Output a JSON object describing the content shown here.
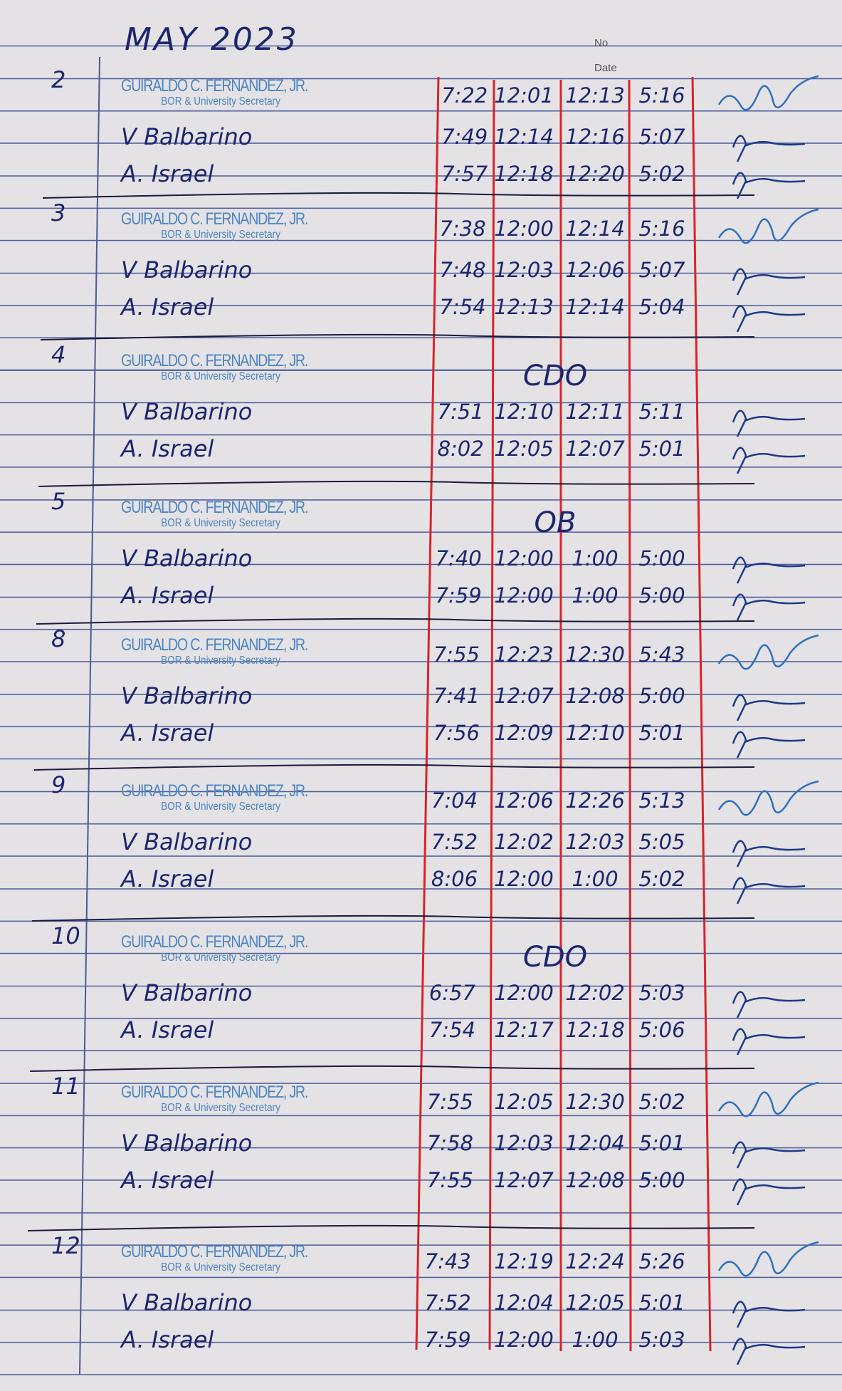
{
  "header": {
    "title": "MAY 2023",
    "no_label": "No",
    "date_label": "Date"
  },
  "stamp": {
    "name": "GUIRALDO C. FERNANDEZ, JR.",
    "position": "BOR & University Secretary"
  },
  "colors": {
    "ink": "#1c2670",
    "stamp": "#4d86c4",
    "column_rule": "#d8242a",
    "signature": "#2f6fc0"
  },
  "days": [
    {
      "day": "2",
      "note": "",
      "rows": [
        {
          "name": "",
          "times": [
            "7:22",
            "12:01",
            "12:13",
            "5:16"
          ]
        },
        {
          "name": "V Balbarino",
          "times": [
            "7:49",
            "12:14",
            "12:16",
            "5:07"
          ]
        },
        {
          "name": "A. Israel",
          "times": [
            "7:57",
            "12:18",
            "12:20",
            "5:02"
          ]
        }
      ]
    },
    {
      "day": "3",
      "note": "",
      "rows": [
        {
          "name": "",
          "times": [
            "7:38",
            "12:00",
            "12:14",
            "5:16"
          ]
        },
        {
          "name": "V Balbarino",
          "times": [
            "7:48",
            "12:03",
            "12:06",
            "5:07"
          ]
        },
        {
          "name": "A. Israel",
          "times": [
            "7:54",
            "12:13",
            "12:14",
            "5:04"
          ]
        }
      ]
    },
    {
      "day": "4",
      "note": "CDO",
      "rows": [
        {
          "name": "",
          "times": []
        },
        {
          "name": "V Balbarino",
          "times": [
            "7:51",
            "12:10",
            "12:11",
            "5:11"
          ]
        },
        {
          "name": "A. Israel",
          "times": [
            "8:02",
            "12:05",
            "12:07",
            "5:01"
          ]
        }
      ]
    },
    {
      "day": "5",
      "note": "OB",
      "rows": [
        {
          "name": "",
          "times": []
        },
        {
          "name": "V Balbarino",
          "times": [
            "7:40",
            "12:00",
            "1:00",
            "5:00"
          ]
        },
        {
          "name": "A. Israel",
          "times": [
            "7:59",
            "12:00",
            "1:00",
            "5:00"
          ]
        }
      ]
    },
    {
      "day": "8",
      "note": "",
      "rows": [
        {
          "name": "",
          "times": [
            "7:55",
            "12:23",
            "12:30",
            "5:43"
          ]
        },
        {
          "name": "V Balbarino",
          "times": [
            "7:41",
            "12:07",
            "12:08",
            "5:00"
          ]
        },
        {
          "name": "A. Israel",
          "times": [
            "7:56",
            "12:09",
            "12:10",
            "5:01"
          ]
        }
      ]
    },
    {
      "day": "9",
      "note": "",
      "rows": [
        {
          "name": "",
          "times": [
            "7:04",
            "12:06",
            "12:26",
            "5:13"
          ]
        },
        {
          "name": "V Balbarino",
          "times": [
            "7:52",
            "12:02",
            "12:03",
            "5:05"
          ]
        },
        {
          "name": "A. Israel",
          "times": [
            "8:06",
            "12:00",
            "1:00",
            "5:02"
          ]
        }
      ]
    },
    {
      "day": "10",
      "note": "CDO",
      "rows": [
        {
          "name": "",
          "times": []
        },
        {
          "name": "V Balbarino",
          "times": [
            "6:57",
            "12:00",
            "12:02",
            "5:03"
          ]
        },
        {
          "name": "A. Israel",
          "times": [
            "7:54",
            "12:17",
            "12:18",
            "5:06"
          ]
        }
      ]
    },
    {
      "day": "11",
      "note": "",
      "rows": [
        {
          "name": "",
          "times": [
            "7:55",
            "12:05",
            "12:30",
            "5:02"
          ]
        },
        {
          "name": "V Balbarino",
          "times": [
            "7:58",
            "12:03",
            "12:04",
            "5:01"
          ]
        },
        {
          "name": "A. Israel",
          "times": [
            "7:55",
            "12:07",
            "12:08",
            "5:00"
          ]
        }
      ]
    },
    {
      "day": "12",
      "note": "",
      "rows": [
        {
          "name": "",
          "times": [
            "7:43",
            "12:19",
            "12:24",
            "5:26"
          ]
        },
        {
          "name": "V Balbarino",
          "times": [
            "7:52",
            "12:04",
            "12:05",
            "5:01"
          ]
        },
        {
          "name": "A. Israel",
          "times": [
            "7:59",
            "12:00",
            "1:00",
            "5:03"
          ]
        }
      ]
    }
  ]
}
